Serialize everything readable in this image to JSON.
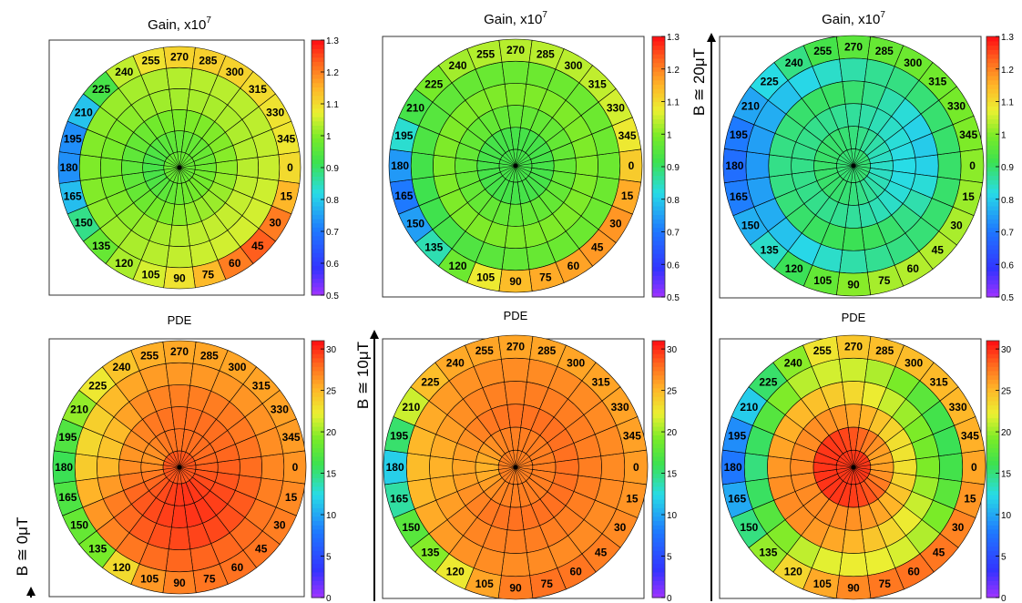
{
  "chart_data": [
    {
      "type": "heatmap",
      "title": "Gain, x10",
      "title_superscript": "7",
      "colorbar_range": [
        0.5,
        1.3
      ],
      "colorbar_ticks": [
        "0.5",
        "0.6",
        "0.7",
        "0.8",
        "0.9",
        "1",
        "1.1",
        "1.2",
        "1.3"
      ],
      "angle_labels": [
        "0",
        "15",
        "30",
        "45",
        "60",
        "75",
        "90",
        "105",
        "120",
        "135",
        "150",
        "165",
        "180",
        "195",
        "210",
        "225",
        "240",
        "255",
        "270",
        "285",
        "300",
        "315",
        "330",
        "345"
      ],
      "rings": 5,
      "ring_values": [
        0.97,
        1.0,
        1.03,
        1.04,
        1.06
      ],
      "angular_profile": "gain_b0"
    },
    {
      "type": "heatmap",
      "title": "Gain, x10",
      "title_superscript": "7",
      "colorbar_range": [
        0.5,
        1.3
      ],
      "colorbar_ticks": [
        "0.5",
        "0.6",
        "0.7",
        "0.8",
        "0.9",
        "1",
        "1.1",
        "1.2",
        "1.3"
      ],
      "angle_labels": [
        "0",
        "15",
        "30",
        "45",
        "60",
        "75",
        "90",
        "105",
        "120",
        "135",
        "150",
        "165",
        "180",
        "195",
        "210",
        "225",
        "240",
        "255",
        "270",
        "285",
        "300",
        "315",
        "330",
        "345"
      ],
      "rings": 5,
      "ring_values": [
        0.93,
        0.97,
        1.0,
        0.98,
        1.04
      ],
      "angular_profile": "gain_b10"
    },
    {
      "type": "heatmap",
      "title": "Gain, x10",
      "title_superscript": "7",
      "colorbar_range": [
        0.5,
        1.3
      ],
      "colorbar_ticks": [
        "0.5",
        "0.6",
        "0.7",
        "0.8",
        "0.9",
        "1",
        "1.1",
        "1.2",
        "1.3"
      ],
      "angle_labels": [
        "0",
        "15",
        "30",
        "45",
        "60",
        "75",
        "90",
        "105",
        "120",
        "135",
        "150",
        "165",
        "180",
        "195",
        "210",
        "225",
        "240",
        "255",
        "270",
        "285",
        "300",
        "315",
        "330",
        "345"
      ],
      "rings": 5,
      "ring_values": [
        0.9,
        0.88,
        0.92,
        0.88,
        0.98
      ],
      "angular_profile": "gain_b20"
    },
    {
      "type": "heatmap",
      "title": "PDE",
      "colorbar_range": [
        0,
        31
      ],
      "colorbar_ticks": [
        "0",
        "5",
        "10",
        "15",
        "20",
        "25",
        "30"
      ],
      "angle_labels": [
        "0",
        "15",
        "30",
        "45",
        "60",
        "75",
        "90",
        "105",
        "120",
        "135",
        "150",
        "165",
        "180",
        "195",
        "210",
        "225",
        "240",
        "255",
        "270",
        "285",
        "300",
        "315",
        "330",
        "345"
      ],
      "rings": 5,
      "ring_values": [
        28,
        28,
        27.5,
        26.5,
        26
      ],
      "angular_profile": "pde_b0"
    },
    {
      "type": "heatmap",
      "title": "PDE",
      "colorbar_range": [
        0,
        31
      ],
      "colorbar_ticks": [
        "0",
        "5",
        "10",
        "15",
        "20",
        "25",
        "30"
      ],
      "angle_labels": [
        "0",
        "15",
        "30",
        "45",
        "60",
        "75",
        "90",
        "105",
        "120",
        "135",
        "150",
        "165",
        "180",
        "195",
        "210",
        "225",
        "240",
        "255",
        "270",
        "285",
        "300",
        "315",
        "330",
        "345"
      ],
      "rings": 5,
      "ring_values": [
        27.5,
        28,
        27.5,
        27,
        26
      ],
      "angular_profile": "pde_b10"
    },
    {
      "type": "heatmap",
      "title": "PDE",
      "colorbar_range": [
        0,
        31
      ],
      "colorbar_ticks": [
        "0",
        "5",
        "10",
        "15",
        "20",
        "25",
        "30"
      ],
      "angle_labels": [
        "0",
        "15",
        "30",
        "45",
        "60",
        "75",
        "90",
        "105",
        "120",
        "135",
        "150",
        "165",
        "180",
        "195",
        "210",
        "225",
        "240",
        "255",
        "270",
        "285",
        "300",
        "315",
        "330",
        "345"
      ],
      "rings": 5,
      "ring_values": [
        30,
        27,
        25,
        23,
        25
      ],
      "angular_profile": "pde_b20"
    }
  ],
  "field_labels": [
    "B ≅ 0μT",
    "B ≅ 10μT",
    "B ≅ 20μT"
  ],
  "colors": {
    "frame": "#333333",
    "grid": "#000000"
  }
}
